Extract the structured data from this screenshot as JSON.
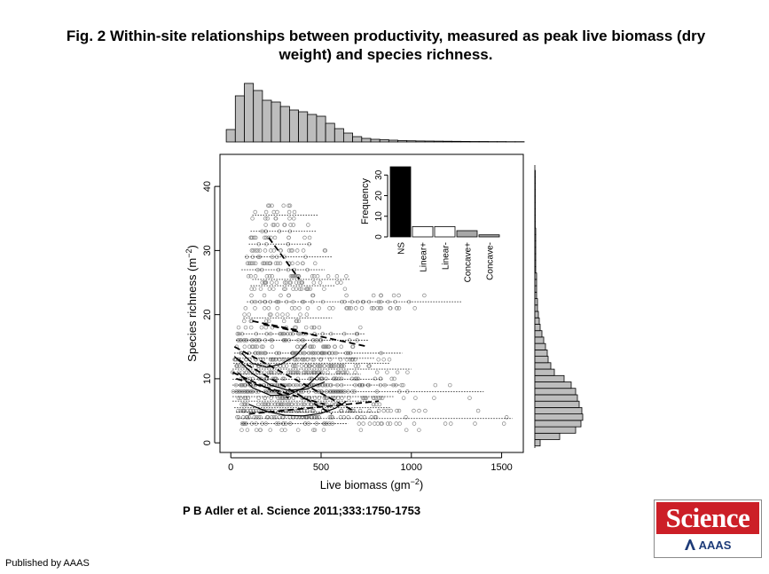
{
  "title": "Fig. 2 Within-site relationships between productivity, measured as peak live biomass (dry weight) and species richness.",
  "citation": "P B Adler et al. Science 2011;333:1750-1753",
  "published_by": "Published by AAAS",
  "logo": {
    "top_text": "Science",
    "bottom_text": "AAAS"
  },
  "colors": {
    "scatter_point": "#888888",
    "hist_fill": "#bdbdbd",
    "ns_bar": "#000000",
    "concave_bar": "#a8a8a8",
    "logo_red": "#cc1f27",
    "logo_blue": "#1d3b78"
  },
  "chart_data": [
    {
      "type": "scatter",
      "xlabel": "Live biomass  (gm",
      "xlabel_sup": "−2",
      "xlabel_end": ")",
      "ylabel": "Species richness (m",
      "ylabel_sup": "−2",
      "ylabel_end": ")",
      "xlim": [
        -60,
        1620
      ],
      "ylim": [
        -1.5,
        45
      ],
      "xticks": [
        0,
        500,
        1000,
        1500
      ],
      "yticks": [
        0,
        10,
        20,
        30,
        40
      ],
      "fits": [
        {
          "style": "dotted",
          "x": [
            120,
            480
          ],
          "y": [
            35.5,
            35.5
          ]
        },
        {
          "style": "dotted",
          "x": [
            110,
            470
          ],
          "y": [
            33.0,
            33.0
          ]
        },
        {
          "style": "dotted",
          "x": [
            100,
            450
          ],
          "y": [
            31.0,
            31.0
          ]
        },
        {
          "style": "dotted",
          "x": [
            80,
            560
          ],
          "y": [
            29.0,
            29.0
          ]
        },
        {
          "style": "dotted",
          "x": [
            60,
            520
          ],
          "y": [
            27.0,
            27.0
          ]
        },
        {
          "style": "dotted",
          "x": [
            120,
            660
          ],
          "y": [
            25.5,
            25.5
          ]
        },
        {
          "style": "dotted",
          "x": [
            110,
            580
          ],
          "y": [
            24.5,
            24.5
          ]
        },
        {
          "style": "dotted",
          "x": [
            90,
            1280
          ],
          "y": [
            22.0,
            22.0
          ]
        },
        {
          "style": "dotted",
          "x": [
            70,
            560
          ],
          "y": [
            19.5,
            19.5
          ]
        },
        {
          "style": "dotted",
          "x": [
            40,
            740
          ],
          "y": [
            17.0,
            17.0
          ]
        },
        {
          "style": "dotted",
          "x": [
            30,
            760
          ],
          "y": [
            16.0,
            16.0
          ]
        },
        {
          "style": "dotted",
          "x": [
            20,
            950
          ],
          "y": [
            14.0,
            14.0
          ]
        },
        {
          "style": "dotted",
          "x": [
            20,
            800
          ],
          "y": [
            13.2,
            13.2
          ]
        },
        {
          "style": "dotted",
          "x": [
            15,
            880
          ],
          "y": [
            12.4,
            12.4
          ]
        },
        {
          "style": "dotted",
          "x": [
            10,
            1000
          ],
          "y": [
            11.5,
            11.5
          ]
        },
        {
          "style": "dotted",
          "x": [
            10,
            720
          ],
          "y": [
            10.7,
            10.7
          ]
        },
        {
          "style": "dotted",
          "x": [
            10,
            840
          ],
          "y": [
            9.9,
            9.9
          ]
        },
        {
          "style": "dotted",
          "x": [
            10,
            930
          ],
          "y": [
            9.0,
            9.0
          ]
        },
        {
          "style": "dotted",
          "x": [
            10,
            1400
          ],
          "y": [
            8.0,
            8.0
          ]
        },
        {
          "style": "dotted",
          "x": [
            10,
            900
          ],
          "y": [
            7.2,
            7.2
          ]
        },
        {
          "style": "dotted",
          "x": [
            10,
            780
          ],
          "y": [
            6.5,
            6.5
          ]
        },
        {
          "style": "dotted",
          "x": [
            20,
            880
          ],
          "y": [
            5.5,
            5.5
          ]
        },
        {
          "style": "dotted",
          "x": [
            30,
            820
          ],
          "y": [
            4.8,
            4.8
          ]
        },
        {
          "style": "dotted",
          "x": [
            40,
            1560
          ],
          "y": [
            3.8,
            3.8
          ]
        },
        {
          "style": "dotted",
          "x": [
            60,
            650
          ],
          "y": [
            3.0,
            3.0
          ]
        },
        {
          "style": "dashed",
          "x": [
            210,
            380
          ],
          "y": [
            32.0,
            25.5
          ]
        },
        {
          "style": "dashed",
          "x": [
            120,
            380
          ],
          "y": [
            19.0,
            17.5
          ]
        },
        {
          "style": "dashed",
          "x": [
            180,
            760
          ],
          "y": [
            18.5,
            15.0
          ]
        },
        {
          "style": "dashed",
          "x": [
            20,
            680
          ],
          "y": [
            15.0,
            5.0
          ]
        },
        {
          "style": "dashed",
          "x": [
            40,
            560
          ],
          "y": [
            13.0,
            4.5
          ]
        },
        {
          "style": "dashed",
          "x": [
            100,
            820
          ],
          "y": [
            4.5,
            6.5
          ]
        },
        {
          "style": "dashed",
          "x": [
            10,
            320
          ],
          "y": [
            11.0,
            7.0
          ]
        },
        {
          "style": "dashed",
          "x": [
            30,
            520
          ],
          "y": [
            10.0,
            6.0
          ]
        },
        {
          "style": "solid",
          "x": [
            60,
            120,
            200,
            280,
            360,
            420
          ],
          "y": [
            14.0,
            12.4,
            11.8,
            12.3,
            13.6,
            15.5
          ]
        },
        {
          "style": "solid",
          "x": [
            40,
            120,
            220,
            320,
            420,
            500
          ],
          "y": [
            11.0,
            8.6,
            7.4,
            7.5,
            8.8,
            11.0
          ]
        },
        {
          "style": "solid",
          "x": [
            100,
            200,
            300,
            400,
            500,
            580,
            640
          ],
          "y": [
            6.0,
            4.9,
            4.3,
            4.2,
            4.6,
            5.4,
            6.5
          ]
        },
        {
          "style": "solid",
          "x": [
            20,
            120,
            220,
            320,
            420,
            520
          ],
          "y": [
            13.5,
            10.8,
            9.0,
            8.2,
            8.4,
            9.5
          ]
        }
      ]
    },
    {
      "type": "histogram",
      "orientation": "vertical",
      "xlim": [
        -60,
        1620
      ],
      "bin_width": 50,
      "bin_start": -25,
      "counts": [
        14,
        52,
        66,
        58,
        47,
        45,
        40,
        36,
        34,
        31,
        29,
        21,
        15,
        10,
        6,
        4,
        3,
        2.5,
        2,
        1.5,
        1.3,
        1.1,
        1,
        0.9,
        0.8,
        0.7,
        0.6,
        0.5,
        0.5,
        0.4,
        0.4,
        0.3,
        0.3
      ],
      "max_count": 66
    },
    {
      "type": "histogram",
      "orientation": "horizontal",
      "ylim": [
        -1.5,
        45
      ],
      "bin_width": 1,
      "bin_start": -0.5,
      "counts": [
        6,
        28,
        46,
        52,
        54,
        53,
        50,
        48,
        46,
        41,
        33,
        22,
        18,
        15,
        14,
        12,
        10,
        8,
        6,
        5,
        4,
        3,
        3,
        2,
        2,
        2,
        2,
        1,
        1,
        1,
        1,
        1,
        1,
        1,
        0.5,
        0.5,
        0.5,
        0.5,
        0.5,
        0.5,
        0.5,
        0.5,
        0.5
      ],
      "max_count": 54
    },
    {
      "type": "bar",
      "ylabel": "Frequency",
      "categories": [
        "NS",
        "Linear+",
        "Linear-",
        "Concave+",
        "Concave-"
      ],
      "values": [
        34,
        5,
        5,
        3,
        1
      ],
      "fills": [
        "#000000",
        "#ffffff",
        "#ffffff",
        "#a8a8a8",
        "#a8a8a8"
      ],
      "ylim": [
        0,
        34
      ],
      "yticks": [
        0,
        10,
        20,
        30
      ]
    }
  ]
}
